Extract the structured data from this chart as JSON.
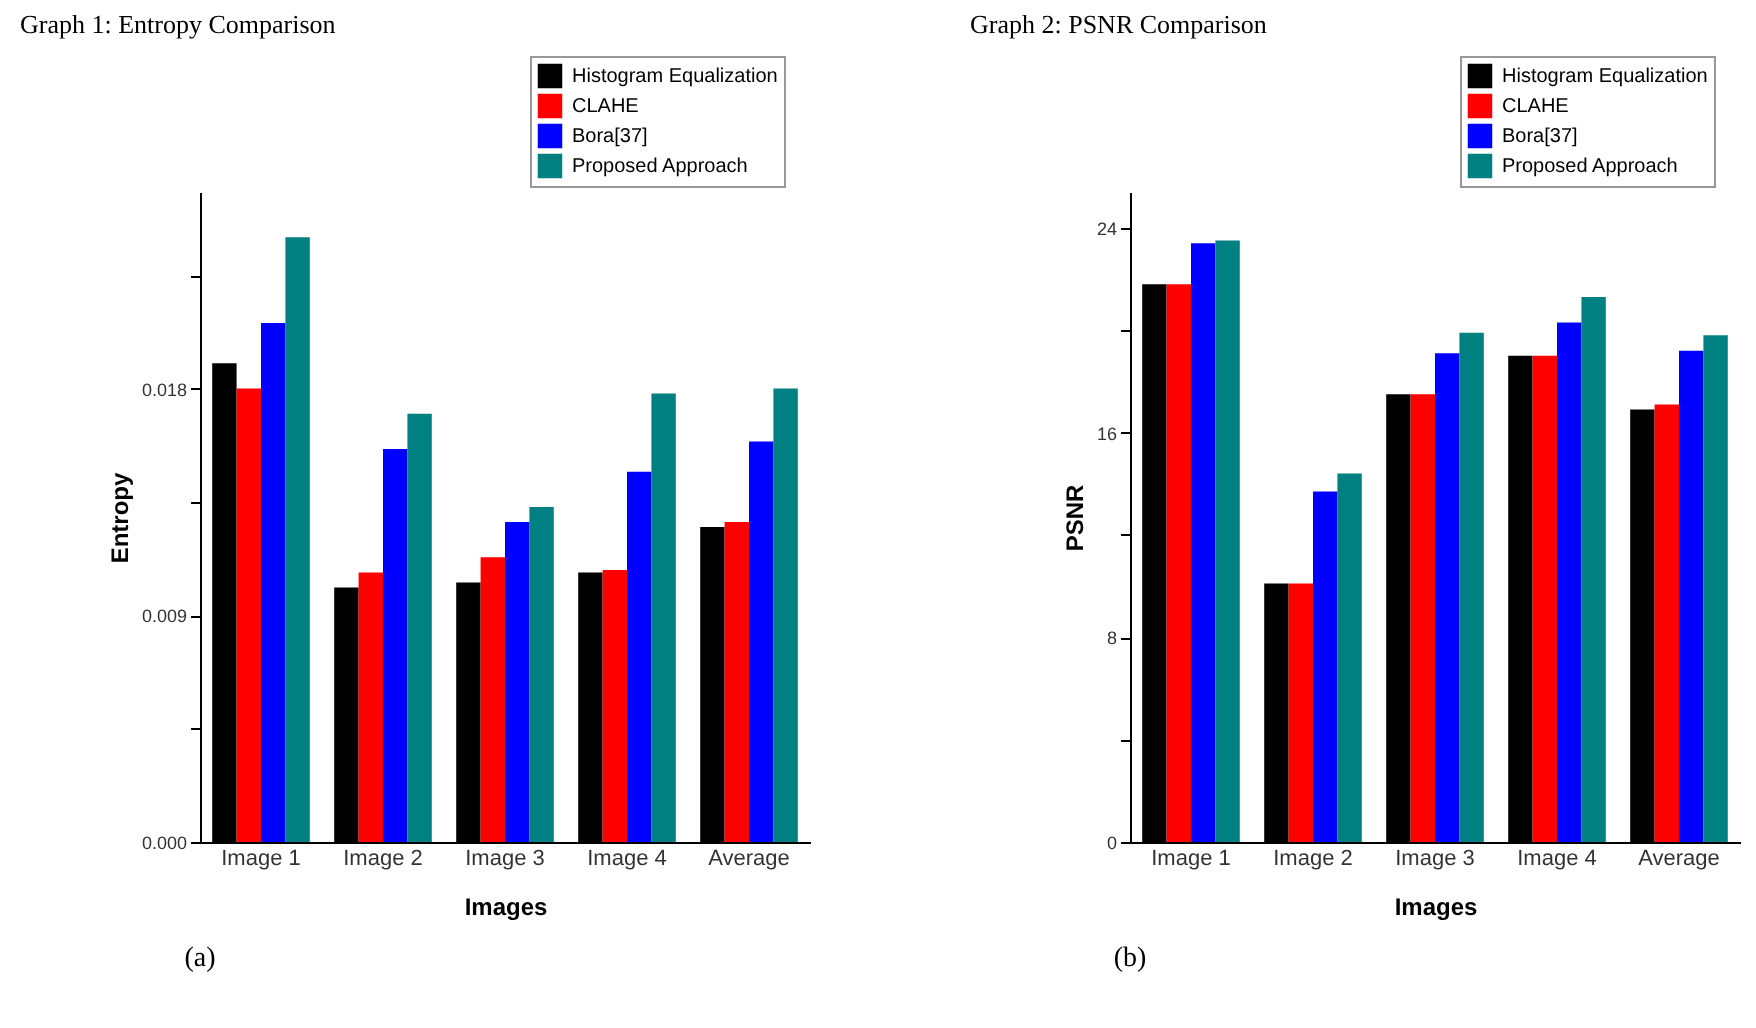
{
  "chart_data": [
    {
      "type": "bar",
      "title": "Graph 1: Entropy Comparison",
      "xlabel": "Images",
      "ylabel": "Entropy",
      "annotations": [
        "(a)"
      ],
      "categories": [
        "Image 1",
        "Image 2",
        "Image 3",
        "Image 4",
        "Average"
      ],
      "series": [
        {
          "name": "Histogram Equalization",
          "color": "#000000",
          "values": [
            0.019,
            0.0101,
            0.0103,
            0.0107,
            0.0125
          ]
        },
        {
          "name": "CLAHE",
          "color": "#ff0000",
          "values": [
            0.018,
            0.0107,
            0.0113,
            0.0108,
            0.0127
          ]
        },
        {
          "name": "Bora[37]",
          "color": "#0000ff",
          "values": [
            0.0206,
            0.0156,
            0.0127,
            0.0147,
            0.0159
          ]
        },
        {
          "name": "Proposed Approach",
          "color": "#008080",
          "values": [
            0.024,
            0.017,
            0.0133,
            0.0178,
            0.018
          ]
        }
      ],
      "ylim": [
        0,
        0.0258
      ],
      "yticks": [
        {
          "value": 0,
          "label": "0.000"
        },
        {
          "value": 0.0045,
          "label": null
        },
        {
          "value": 0.009,
          "label": "0.009"
        },
        {
          "value": 0.0135,
          "label": null
        },
        {
          "value": 0.018,
          "label": "0.018"
        },
        {
          "value": 0.0225,
          "label": null
        }
      ],
      "legend": "top right"
    },
    {
      "type": "bar",
      "title": "Graph 2: PSNR Comparison",
      "xlabel": "Images",
      "ylabel": "PSNR",
      "annotations": [
        "(b)"
      ],
      "categories": [
        "Image 1",
        "Image 2",
        "Image 3",
        "Image 4",
        "Average"
      ],
      "series": [
        {
          "name": "Histogram Equalization",
          "color": "#000000",
          "values": [
            21.8,
            10.1,
            17.5,
            19.0,
            16.9
          ]
        },
        {
          "name": "CLAHE",
          "color": "#ff0000",
          "values": [
            21.8,
            10.1,
            17.5,
            19.0,
            17.1
          ]
        },
        {
          "name": "Bora[37]",
          "color": "#0000ff",
          "values": [
            23.4,
            13.7,
            19.1,
            20.3,
            19.2
          ]
        },
        {
          "name": "Proposed Approach",
          "color": "#008080",
          "values": [
            23.5,
            14.4,
            19.9,
            21.3,
            19.8
          ]
        }
      ],
      "ylim": [
        0,
        25.4
      ],
      "yticks": [
        0,
        {
          "value": 4,
          "label": null
        },
        8,
        {
          "value": 12,
          "label": null
        },
        16,
        {
          "value": 20,
          "label": null
        },
        24
      ],
      "legend": "top right"
    }
  ]
}
